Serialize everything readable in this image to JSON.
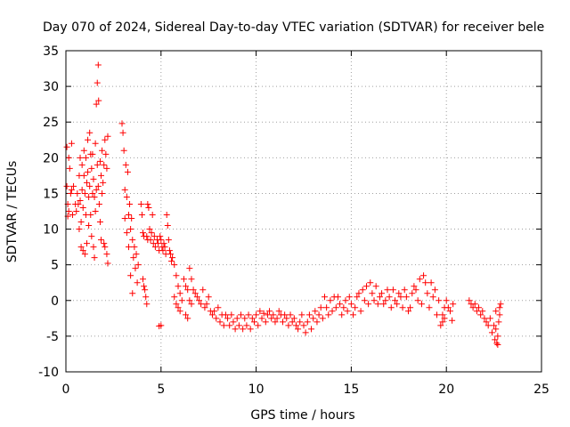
{
  "chart_data": {
    "type": "scatter",
    "title": "Day 070 of 2024, Sidereal Day-to-day VTEC variation (SDTVAR) for receiver bele",
    "xlabel": "GPS time / hours",
    "ylabel": "SDTVAR / TECUs",
    "xlim": [
      0,
      25
    ],
    "ylim": [
      -10,
      35
    ],
    "xticks": [
      0,
      5,
      10,
      15,
      20,
      25
    ],
    "yticks": [
      -10,
      -5,
      0,
      5,
      10,
      15,
      20,
      25,
      30,
      35
    ],
    "grid": true,
    "marker": "+",
    "color": "#ff0000",
    "series": [
      {
        "name": "SDTVAR",
        "points": [
          [
            0.05,
            21.5
          ],
          [
            0.05,
            16.0
          ],
          [
            0.1,
            13.5
          ],
          [
            0.1,
            11.8
          ],
          [
            0.15,
            20.0
          ],
          [
            0.15,
            12.5
          ],
          [
            0.2,
            18.5
          ],
          [
            0.25,
            15.0
          ],
          [
            0.3,
            22.0
          ],
          [
            0.3,
            15.5
          ],
          [
            0.35,
            12.0
          ],
          [
            0.4,
            16.0
          ],
          [
            0.5,
            13.5
          ],
          [
            0.55,
            12.5
          ],
          [
            0.6,
            15.0
          ],
          [
            0.65,
            13.5
          ],
          [
            0.7,
            17.5
          ],
          [
            0.7,
            10.0
          ],
          [
            0.75,
            20.0
          ],
          [
            0.75,
            14.0
          ],
          [
            0.8,
            11.0
          ],
          [
            0.8,
            7.5
          ],
          [
            0.85,
            19.0
          ],
          [
            0.85,
            15.5
          ],
          [
            0.9,
            13.0
          ],
          [
            0.9,
            7.0
          ],
          [
            0.95,
            21.0
          ],
          [
            0.95,
            17.5
          ],
          [
            1.0,
            15.0
          ],
          [
            1.0,
            6.5
          ],
          [
            1.05,
            20.0
          ],
          [
            1.05,
            12.0
          ],
          [
            1.1,
            16.5
          ],
          [
            1.1,
            8.0
          ],
          [
            1.15,
            22.5
          ],
          [
            1.15,
            18.0
          ],
          [
            1.2,
            14.5
          ],
          [
            1.2,
            10.5
          ],
          [
            1.25,
            23.5
          ],
          [
            1.25,
            16.0
          ],
          [
            1.3,
            20.5
          ],
          [
            1.3,
            12.0
          ],
          [
            1.35,
            18.5
          ],
          [
            1.35,
            9.0
          ],
          [
            1.4,
            20.5
          ],
          [
            1.4,
            15.0
          ],
          [
            1.45,
            17.0
          ],
          [
            1.45,
            7.5
          ],
          [
            1.5,
            14.5
          ],
          [
            1.5,
            6.0
          ],
          [
            1.55,
            22.0
          ],
          [
            1.55,
            12.5
          ],
          [
            1.6,
            27.5
          ],
          [
            1.6,
            15.5
          ],
          [
            1.65,
            30.5
          ],
          [
            1.65,
            19.0
          ],
          [
            1.7,
            33.0
          ],
          [
            1.7,
            16.0
          ],
          [
            1.72,
            28.0
          ],
          [
            1.75,
            13.5
          ],
          [
            1.8,
            19.5
          ],
          [
            1.8,
            11.0
          ],
          [
            1.85,
            17.5
          ],
          [
            1.85,
            8.5
          ],
          [
            1.9,
            21.0
          ],
          [
            1.9,
            15.0
          ],
          [
            1.95,
            16.5
          ],
          [
            2.0,
            19.0
          ],
          [
            2.0,
            8.0
          ],
          [
            2.05,
            22.5
          ],
          [
            2.05,
            7.5
          ],
          [
            2.1,
            20.5
          ],
          [
            2.15,
            18.5
          ],
          [
            2.15,
            6.5
          ],
          [
            2.2,
            23.0
          ],
          [
            2.2,
            5.2
          ],
          [
            2.95,
            24.8
          ],
          [
            3.0,
            23.5
          ],
          [
            3.05,
            21.0
          ],
          [
            3.1,
            15.5
          ],
          [
            3.1,
            11.5
          ],
          [
            3.15,
            19.0
          ],
          [
            3.2,
            14.5
          ],
          [
            3.2,
            9.5
          ],
          [
            3.25,
            18.0
          ],
          [
            3.3,
            12.0
          ],
          [
            3.3,
            7.5
          ],
          [
            3.35,
            13.5
          ],
          [
            3.4,
            10.0
          ],
          [
            3.4,
            3.5
          ],
          [
            3.45,
            11.5
          ],
          [
            3.5,
            8.5
          ],
          [
            3.5,
            1.0
          ],
          [
            3.55,
            6.0
          ],
          [
            3.6,
            7.5
          ],
          [
            3.65,
            4.5
          ],
          [
            3.7,
            6.5
          ],
          [
            3.75,
            2.5
          ],
          [
            3.8,
            5.0
          ],
          [
            3.95,
            13.5
          ],
          [
            4.0,
            12.0
          ],
          [
            4.05,
            9.5
          ],
          [
            4.05,
            3.0
          ],
          [
            4.1,
            9.0
          ],
          [
            4.1,
            2.0
          ],
          [
            4.15,
            1.5
          ],
          [
            4.2,
            0.5
          ],
          [
            4.25,
            9.0
          ],
          [
            4.25,
            -0.5
          ],
          [
            4.3,
            13.5
          ],
          [
            4.3,
            8.5
          ],
          [
            4.35,
            13.0
          ],
          [
            4.4,
            10.0
          ],
          [
            4.45,
            8.5
          ],
          [
            4.5,
            9.5
          ],
          [
            4.55,
            12.0
          ],
          [
            4.6,
            8.0
          ],
          [
            4.65,
            9.0
          ],
          [
            4.7,
            7.5
          ],
          [
            4.8,
            8.5
          ],
          [
            4.85,
            8.0
          ],
          [
            4.9,
            7.0
          ],
          [
            4.95,
            9.0
          ],
          [
            5.0,
            8.5
          ],
          [
            5.05,
            7.5
          ],
          [
            5.1,
            7.0
          ],
          [
            5.15,
            8.0
          ],
          [
            5.2,
            7.5
          ],
          [
            5.25,
            6.5
          ],
          [
            5.3,
            12.0
          ],
          [
            5.35,
            10.5
          ],
          [
            5.4,
            8.5
          ],
          [
            5.45,
            7.0
          ],
          [
            5.5,
            6.5
          ],
          [
            5.55,
            5.5
          ],
          [
            5.6,
            6.0
          ],
          [
            5.7,
            5.0
          ],
          [
            5.8,
            3.5
          ],
          [
            5.9,
            2.0
          ],
          [
            6.0,
            1.0
          ],
          [
            6.1,
            0.0
          ],
          [
            5.7,
            0.5
          ],
          [
            5.8,
            -0.5
          ],
          [
            5.9,
            -1.0
          ],
          [
            6.0,
            -1.5
          ],
          [
            5.0,
            -3.5
          ],
          [
            4.9,
            -3.6
          ],
          [
            6.2,
            3.0
          ],
          [
            6.3,
            2.0
          ],
          [
            6.4,
            1.5
          ],
          [
            6.5,
            4.5
          ],
          [
            6.6,
            3.0
          ],
          [
            6.7,
            1.5
          ],
          [
            6.3,
            -2.0
          ],
          [
            6.4,
            -2.5
          ],
          [
            6.5,
            0.0
          ],
          [
            6.6,
            -0.5
          ],
          [
            6.8,
            1.0
          ],
          [
            6.9,
            0.5
          ],
          [
            7.0,
            0.0
          ],
          [
            7.1,
            -0.5
          ],
          [
            7.2,
            1.5
          ],
          [
            7.3,
            -1.0
          ],
          [
            7.4,
            -0.5
          ],
          [
            7.5,
            0.5
          ],
          [
            7.6,
            -1.5
          ],
          [
            7.7,
            -2.0
          ],
          [
            7.8,
            -1.5
          ],
          [
            7.9,
            -2.5
          ],
          [
            8.0,
            -1.0
          ],
          [
            8.1,
            -3.0
          ],
          [
            8.2,
            -2.0
          ],
          [
            8.3,
            -3.5
          ],
          [
            8.4,
            -2.0
          ],
          [
            8.5,
            -2.5
          ],
          [
            8.6,
            -3.5
          ],
          [
            8.7,
            -2.0
          ],
          [
            8.8,
            -3.0
          ],
          [
            8.9,
            -4.0
          ],
          [
            9.0,
            -2.5
          ],
          [
            9.1,
            -3.5
          ],
          [
            9.2,
            -2.0
          ],
          [
            9.3,
            -4.0
          ],
          [
            9.4,
            -2.5
          ],
          [
            9.5,
            -3.5
          ],
          [
            9.6,
            -2.0
          ],
          [
            9.7,
            -4.0
          ],
          [
            9.8,
            -2.5
          ],
          [
            9.9,
            -3.0
          ],
          [
            10.0,
            -2.0
          ],
          [
            10.1,
            -3.5
          ],
          [
            10.2,
            -1.5
          ],
          [
            10.3,
            -2.5
          ],
          [
            10.4,
            -1.8
          ],
          [
            10.5,
            -3.0
          ],
          [
            10.6,
            -2.0
          ],
          [
            10.7,
            -1.5
          ],
          [
            10.8,
            -2.5
          ],
          [
            10.9,
            -2.0
          ],
          [
            11.0,
            -3.0
          ],
          [
            11.1,
            -2.5
          ],
          [
            11.2,
            -1.5
          ],
          [
            11.3,
            -2.0
          ],
          [
            11.4,
            -3.0
          ],
          [
            11.5,
            -2.0
          ],
          [
            11.6,
            -2.5
          ],
          [
            11.7,
            -3.5
          ],
          [
            11.8,
            -2.0
          ],
          [
            11.9,
            -3.0
          ],
          [
            12.0,
            -2.5
          ],
          [
            12.1,
            -3.5
          ],
          [
            12.2,
            -4.0
          ],
          [
            12.3,
            -3.0
          ],
          [
            12.4,
            -2.0
          ],
          [
            12.5,
            -3.5
          ],
          [
            12.6,
            -4.5
          ],
          [
            12.7,
            -3.0
          ],
          [
            12.8,
            -2.0
          ],
          [
            12.9,
            -4.0
          ],
          [
            13.0,
            -2.5
          ],
          [
            13.1,
            -1.5
          ],
          [
            13.2,
            -3.0
          ],
          [
            13.3,
            -2.0
          ],
          [
            13.4,
            -1.0
          ],
          [
            13.5,
            -2.5
          ],
          [
            13.6,
            0.5
          ],
          [
            13.7,
            -1.0
          ],
          [
            13.8,
            -2.0
          ],
          [
            13.9,
            0.0
          ],
          [
            14.0,
            -1.5
          ],
          [
            14.1,
            0.5
          ],
          [
            14.2,
            -1.0
          ],
          [
            14.3,
            0.5
          ],
          [
            14.4,
            -0.5
          ],
          [
            14.5,
            -2.0
          ],
          [
            14.6,
            -1.0
          ],
          [
            14.7,
            0.0
          ],
          [
            14.8,
            -1.5
          ],
          [
            14.9,
            0.5
          ],
          [
            15.0,
            -0.5
          ],
          [
            15.1,
            -2.0
          ],
          [
            15.2,
            -1.0
          ],
          [
            15.3,
            0.5
          ],
          [
            15.4,
            1.0
          ],
          [
            15.5,
            -1.5
          ],
          [
            15.6,
            1.5
          ],
          [
            15.7,
            0.0
          ],
          [
            15.8,
            2.0
          ],
          [
            15.9,
            -0.5
          ],
          [
            16.0,
            2.5
          ],
          [
            16.1,
            1.0
          ],
          [
            16.2,
            0.0
          ],
          [
            16.3,
            2.0
          ],
          [
            16.4,
            -0.5
          ],
          [
            16.5,
            0.5
          ],
          [
            16.6,
            1.0
          ],
          [
            16.7,
            -0.5
          ],
          [
            16.8,
            0.0
          ],
          [
            16.9,
            1.5
          ],
          [
            17.0,
            0.5
          ],
          [
            17.1,
            -1.0
          ],
          [
            17.2,
            1.5
          ],
          [
            17.3,
            0.0
          ],
          [
            17.4,
            -0.5
          ],
          [
            17.5,
            1.0
          ],
          [
            17.6,
            0.5
          ],
          [
            17.7,
            -1.0
          ],
          [
            17.8,
            1.5
          ],
          [
            17.9,
            0.5
          ],
          [
            18.0,
            -1.5
          ],
          [
            18.1,
            -1.0
          ],
          [
            18.2,
            1.0
          ],
          [
            18.3,
            2.0
          ],
          [
            18.4,
            1.5
          ],
          [
            18.5,
            0.0
          ],
          [
            18.6,
            3.0
          ],
          [
            18.7,
            -0.5
          ],
          [
            18.8,
            3.5
          ],
          [
            18.9,
            2.5
          ],
          [
            19.0,
            1.0
          ],
          [
            19.1,
            -1.0
          ],
          [
            19.2,
            2.5
          ],
          [
            19.3,
            0.5
          ],
          [
            19.4,
            1.5
          ],
          [
            19.5,
            -2.0
          ],
          [
            19.6,
            0.0
          ],
          [
            19.7,
            -3.5
          ],
          [
            19.8,
            -2.0
          ],
          [
            19.9,
            -1.0
          ],
          [
            19.8,
            -3.0
          ],
          [
            19.9,
            -2.5
          ],
          [
            20.0,
            0.0
          ],
          [
            20.1,
            -1.0
          ],
          [
            20.2,
            -1.5
          ],
          [
            20.3,
            -2.8
          ],
          [
            20.35,
            -0.5
          ],
          [
            21.2,
            0.0
          ],
          [
            21.3,
            -0.5
          ],
          [
            21.4,
            -1.0
          ],
          [
            21.5,
            -0.5
          ],
          [
            21.6,
            -1.5
          ],
          [
            21.7,
            -1.0
          ],
          [
            21.8,
            -2.0
          ],
          [
            21.9,
            -1.5
          ],
          [
            22.0,
            -2.5
          ],
          [
            22.1,
            -3.0
          ],
          [
            22.2,
            -3.5
          ],
          [
            22.3,
            -2.5
          ],
          [
            22.4,
            -4.5
          ],
          [
            22.5,
            -3.5
          ],
          [
            22.55,
            -5.5
          ],
          [
            22.6,
            -4.0
          ],
          [
            22.65,
            -6.0
          ],
          [
            22.7,
            -5.0
          ],
          [
            22.75,
            -3.0
          ],
          [
            22.8,
            -2.0
          ],
          [
            22.8,
            -1.0
          ],
          [
            22.85,
            -0.5
          ],
          [
            22.7,
            -6.2
          ],
          [
            22.6,
            -1.5
          ]
        ]
      }
    ]
  }
}
